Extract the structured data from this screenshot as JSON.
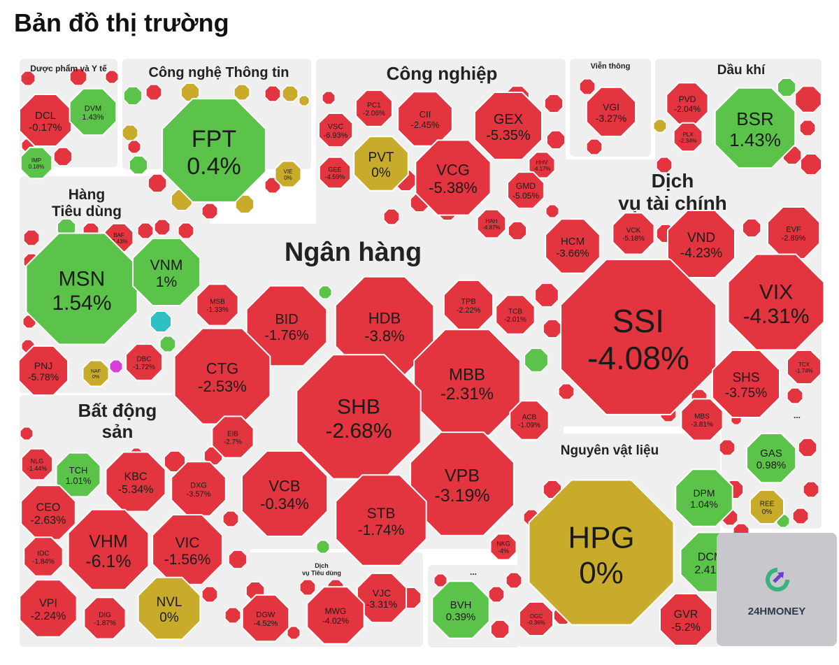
{
  "page_title": "Bản đồ thị trường",
  "colors": {
    "down": "#e2353f",
    "up": "#5bc24a",
    "flat": "#c9ab2b",
    "ceiling": "#d63fd8",
    "floor": "#2ec0c2",
    "bg_panel": "#efefef",
    "border": "#ffffff"
  },
  "logo_text": "24HMONEY",
  "chart_data": {
    "type": "treemap",
    "title": "Bản đồ thị trường",
    "sectors": [
      {
        "name": "Dược phẩm và Y tế",
        "stocks": [
          {
            "ticker": "DCL",
            "change": "-0.17%"
          },
          {
            "ticker": "DVM",
            "change": "1.43%"
          },
          {
            "ticker": "IMP",
            "change": "0.18%"
          }
        ]
      },
      {
        "name": "Công nghệ Thông tin",
        "stocks": [
          {
            "ticker": "FPT",
            "change": "0.4%"
          },
          {
            "ticker": "VIE",
            "change": "0%"
          }
        ]
      },
      {
        "name": "Công nghiệp",
        "stocks": [
          {
            "ticker": "VSC",
            "change": "-6.93%"
          },
          {
            "ticker": "PC1",
            "change": "-2.06%"
          },
          {
            "ticker": "CII",
            "change": "-2.45%"
          },
          {
            "ticker": "GEX",
            "change": "-5.35%"
          },
          {
            "ticker": "PVT",
            "change": "0%"
          },
          {
            "ticker": "GEE",
            "change": "-4.59%"
          },
          {
            "ticker": "VCG",
            "change": "-5.38%"
          },
          {
            "ticker": "HHV",
            "change": "-4.17%"
          },
          {
            "ticker": "GMD",
            "change": "-5.05%"
          },
          {
            "ticker": "HAH",
            "change": "-4.87%"
          }
        ]
      },
      {
        "name": "Viễn thông",
        "stocks": [
          {
            "ticker": "VGI",
            "change": "-3.27%"
          }
        ]
      },
      {
        "name": "Dầu khí",
        "stocks": [
          {
            "ticker": "PVD",
            "change": "-2.04%"
          },
          {
            "ticker": "BSR",
            "change": "1.43%"
          },
          {
            "ticker": "PLX",
            "change": "-2.34%"
          }
        ]
      },
      {
        "name": "Hàng Tiêu dùng",
        "stocks": [
          {
            "ticker": "BAF",
            "change": "-2.43%"
          },
          {
            "ticker": "MSN",
            "change": "1.54%"
          },
          {
            "ticker": "VNM",
            "change": "1%"
          },
          {
            "ticker": "PNJ",
            "change": "-5.78%"
          },
          {
            "ticker": "NAF",
            "change": "0%"
          },
          {
            "ticker": "DBC",
            "change": "-1.72%"
          }
        ]
      },
      {
        "name": "Ngân hàng",
        "stocks": [
          {
            "ticker": "MSB",
            "change": "-1.33%"
          },
          {
            "ticker": "BID",
            "change": "-1.76%"
          },
          {
            "ticker": "HDB",
            "change": "-3.8%"
          },
          {
            "ticker": "TPB",
            "change": "-2.22%"
          },
          {
            "ticker": "TCB",
            "change": "-2.01%"
          },
          {
            "ticker": "CTG",
            "change": "-2.53%"
          },
          {
            "ticker": "MBB",
            "change": "-2.31%"
          },
          {
            "ticker": "SHB",
            "change": "-2.68%"
          },
          {
            "ticker": "EIB",
            "change": "-2.7%"
          },
          {
            "ticker": "ACB",
            "change": "-1.09%"
          },
          {
            "ticker": "VCB",
            "change": "-0.34%"
          },
          {
            "ticker": "VPB",
            "change": "-3.19%"
          },
          {
            "ticker": "STB",
            "change": "-1.74%"
          }
        ]
      },
      {
        "name": "Dịch vụ tài chính",
        "stocks": [
          {
            "ticker": "HCM",
            "change": "-3.66%"
          },
          {
            "ticker": "VCK",
            "change": "-5.18%"
          },
          {
            "ticker": "VND",
            "change": "-4.23%"
          },
          {
            "ticker": "EVF",
            "change": "-2.89%"
          },
          {
            "ticker": "VIX",
            "change": "-4.31%"
          },
          {
            "ticker": "SSI",
            "change": "-4.08%"
          },
          {
            "ticker": "SHS",
            "change": "-3.75%"
          },
          {
            "ticker": "TCX",
            "change": "-1.74%"
          },
          {
            "ticker": "MBS",
            "change": "-3.81%"
          }
        ]
      },
      {
        "name": "Bất động sản",
        "stocks": [
          {
            "ticker": "NLG",
            "change": "-1.44%"
          },
          {
            "ticker": "TCH",
            "change": "1.01%"
          },
          {
            "ticker": "KBC",
            "change": "-5.34%"
          },
          {
            "ticker": "DXG",
            "change": "-3.57%"
          },
          {
            "ticker": "CEO",
            "change": "-2.63%"
          },
          {
            "ticker": "VHM",
            "change": "-6.1%"
          },
          {
            "ticker": "VIC",
            "change": "-1.56%"
          },
          {
            "ticker": "IDC",
            "change": "-1.84%"
          },
          {
            "ticker": "VPI",
            "change": "-2.24%"
          },
          {
            "ticker": "DIG",
            "change": "-1.87%"
          },
          {
            "ticker": "NVL",
            "change": "0%"
          }
        ]
      },
      {
        "name": "Dịch vụ Tiêu dùng",
        "stocks": [
          {
            "ticker": "VJC",
            "change": "-3.31%"
          },
          {
            "ticker": "DGW",
            "change": "-4.52%"
          },
          {
            "ticker": "MWG",
            "change": "-4.02%"
          }
        ]
      },
      {
        "name": "...",
        "stocks": [
          {
            "ticker": "BVH",
            "change": "0.39%"
          }
        ]
      },
      {
        "name": "Nguyên vật liệu",
        "stocks": [
          {
            "ticker": "HPG",
            "change": "0%"
          },
          {
            "ticker": "DPM",
            "change": "1.04%"
          },
          {
            "ticker": "DCM",
            "change": "2.41%"
          },
          {
            "ticker": "NKG",
            "change": "-4%"
          },
          {
            "ticker": "OGC",
            "change": "-0.36%"
          },
          {
            "ticker": "GVR",
            "change": "-5.2%"
          }
        ]
      },
      {
        "name": "...",
        "stocks": [
          {
            "ticker": "GAS",
            "change": "0.98%"
          },
          {
            "ticker": "REE",
            "change": "0%"
          }
        ]
      }
    ]
  }
}
